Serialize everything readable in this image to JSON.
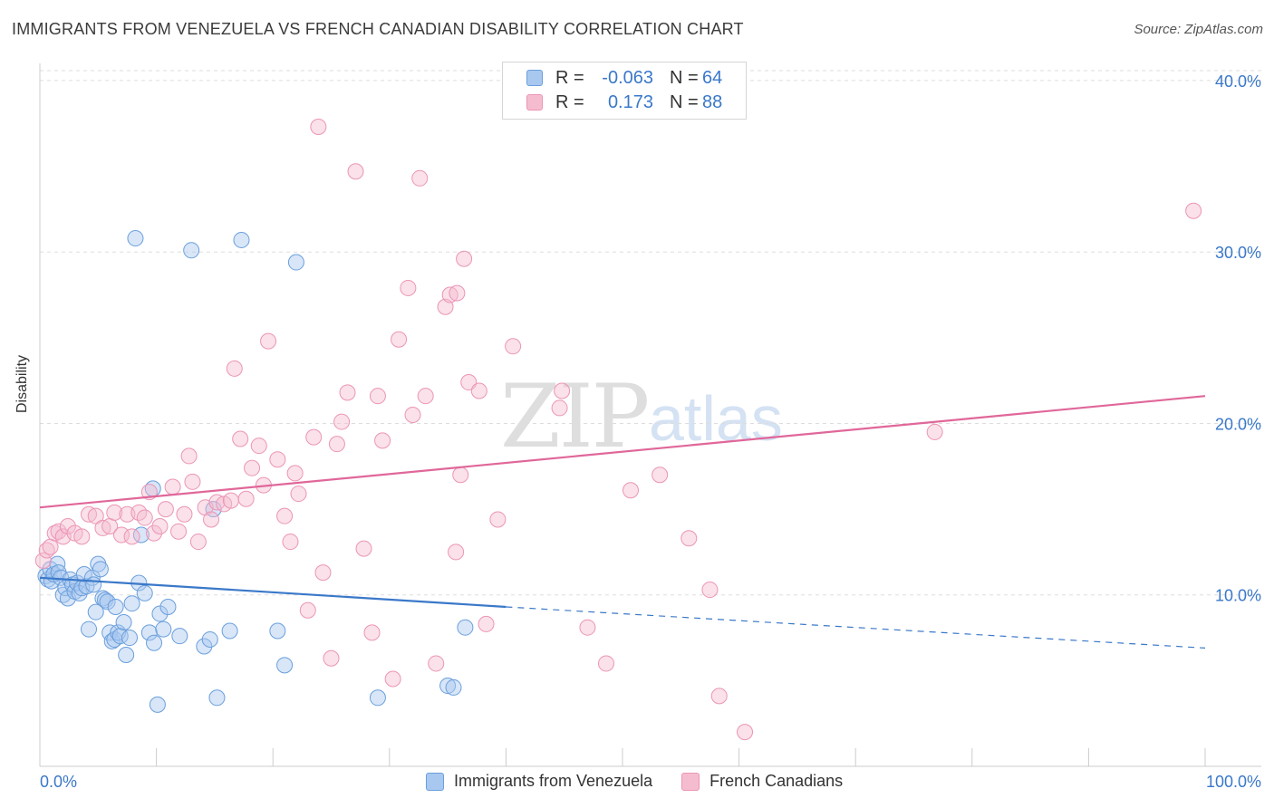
{
  "title": "IMMIGRANTS FROM VENEZUELA VS FRENCH CANADIAN DISABILITY CORRELATION CHART",
  "source": "Source: ZipAtlas.com",
  "watermark": {
    "zip": "ZIP",
    "atlas": "atlas"
  },
  "legend_top": [
    {
      "r_label": "R =",
      "r_value": "-0.063",
      "n_label": "N =",
      "n_value": "64"
    },
    {
      "r_label": "R =",
      "r_value": "0.173",
      "n_label": "N =",
      "n_value": "88"
    }
  ],
  "legend_bottom": [
    "Immigrants from Venezuela",
    "French Canadians"
  ],
  "colors": {
    "blue": "#3a78c9",
    "blue_fill": "#a9c8ef",
    "blue_stroke": "#6a9fdc",
    "pink": "#e0679a",
    "pink_fill": "#f5bcd0",
    "pink_stroke": "#ec95b6",
    "grid": "#dddddd",
    "tick_label": "#3a78c9"
  },
  "chart_data": {
    "type": "scatter",
    "title": "IMMIGRANTS FROM VENEZUELA VS FRENCH CANADIAN DISABILITY CORRELATION CHART",
    "xlabel": "",
    "ylabel": "Disability",
    "xlim": [
      0,
      100
    ],
    "ylim": [
      0,
      41
    ],
    "x_tick_labels": [
      "0.0%",
      "100.0%"
    ],
    "y_ticks": [
      10,
      20,
      30,
      40
    ],
    "y_tick_labels": [
      "10.0%",
      "20.0%",
      "30.0%",
      "40.0%"
    ],
    "legend_position": "top-center",
    "series": [
      {
        "name": "Immigrants from Venezuela",
        "r": -0.063,
        "n": 64,
        "trend": {
          "x0": 0,
          "y0": 11.0,
          "x1": 40,
          "y1": 9.3,
          "dash_to_x": 100,
          "dash_to_y": 6.9
        },
        "points": [
          [
            0.5,
            11.1
          ],
          [
            0.7,
            10.9
          ],
          [
            0.9,
            11.5
          ],
          [
            1.0,
            10.8
          ],
          [
            1.2,
            11.2
          ],
          [
            1.5,
            11.8
          ],
          [
            1.6,
            11.3
          ],
          [
            1.8,
            11.0
          ],
          [
            2.0,
            10.0
          ],
          [
            2.2,
            10.4
          ],
          [
            2.4,
            9.8
          ],
          [
            2.6,
            10.9
          ],
          [
            2.8,
            10.6
          ],
          [
            3.0,
            10.2
          ],
          [
            3.2,
            10.7
          ],
          [
            3.4,
            10.1
          ],
          [
            3.6,
            10.4
          ],
          [
            3.8,
            11.2
          ],
          [
            4.0,
            10.5
          ],
          [
            4.2,
            8.0
          ],
          [
            4.5,
            11.0
          ],
          [
            4.6,
            10.6
          ],
          [
            4.8,
            9.0
          ],
          [
            5.0,
            11.8
          ],
          [
            5.2,
            11.5
          ],
          [
            5.4,
            9.8
          ],
          [
            5.6,
            9.7
          ],
          [
            5.8,
            9.6
          ],
          [
            6.0,
            7.8
          ],
          [
            6.2,
            7.3
          ],
          [
            6.4,
            7.4
          ],
          [
            6.5,
            9.3
          ],
          [
            6.7,
            7.8
          ],
          [
            6.9,
            7.6
          ],
          [
            7.2,
            8.4
          ],
          [
            7.4,
            6.5
          ],
          [
            7.7,
            7.5
          ],
          [
            7.9,
            9.5
          ],
          [
            8.2,
            30.8
          ],
          [
            8.5,
            10.7
          ],
          [
            8.7,
            13.5
          ],
          [
            9.0,
            10.1
          ],
          [
            9.4,
            7.8
          ],
          [
            9.8,
            7.2
          ],
          [
            10.1,
            3.6
          ],
          [
            10.3,
            8.9
          ],
          [
            10.6,
            8.0
          ],
          [
            11.0,
            9.3
          ],
          [
            12.0,
            7.6
          ],
          [
            13.0,
            30.1
          ],
          [
            14.1,
            7.0
          ],
          [
            14.6,
            7.4
          ],
          [
            14.9,
            15.0
          ],
          [
            15.2,
            4.0
          ],
          [
            16.3,
            7.9
          ],
          [
            17.3,
            30.7
          ],
          [
            20.4,
            7.9
          ],
          [
            21.0,
            5.9
          ],
          [
            22.0,
            29.4
          ],
          [
            29.0,
            4.0
          ],
          [
            35.0,
            4.7
          ],
          [
            35.5,
            4.6
          ],
          [
            36.5,
            8.1
          ],
          [
            9.7,
            16.2
          ]
        ]
      },
      {
        "name": "French Canadians",
        "r": 0.173,
        "n": 88,
        "trend": {
          "x0": 0,
          "y0": 15.1,
          "x1": 100,
          "y1": 21.6
        },
        "points": [
          [
            0.3,
            12.0
          ],
          [
            0.6,
            12.6
          ],
          [
            0.9,
            12.8
          ],
          [
            1.3,
            13.6
          ],
          [
            1.6,
            13.7
          ],
          [
            2.0,
            13.4
          ],
          [
            2.4,
            14.0
          ],
          [
            3.0,
            13.6
          ],
          [
            3.6,
            13.4
          ],
          [
            4.2,
            14.7
          ],
          [
            4.8,
            14.6
          ],
          [
            5.4,
            13.9
          ],
          [
            6.0,
            14.0
          ],
          [
            6.4,
            14.8
          ],
          [
            7.0,
            13.5
          ],
          [
            7.5,
            14.7
          ],
          [
            7.9,
            13.4
          ],
          [
            8.5,
            14.8
          ],
          [
            9.0,
            14.5
          ],
          [
            9.4,
            16.0
          ],
          [
            9.8,
            13.6
          ],
          [
            10.3,
            14.0
          ],
          [
            10.8,
            15.0
          ],
          [
            11.4,
            16.3
          ],
          [
            11.9,
            13.7
          ],
          [
            12.4,
            14.7
          ],
          [
            12.8,
            18.1
          ],
          [
            13.1,
            16.6
          ],
          [
            13.6,
            13.1
          ],
          [
            14.2,
            15.1
          ],
          [
            14.7,
            14.4
          ],
          [
            15.2,
            15.4
          ],
          [
            15.8,
            15.3
          ],
          [
            16.4,
            15.5
          ],
          [
            16.7,
            23.2
          ],
          [
            17.2,
            19.1
          ],
          [
            17.7,
            15.6
          ],
          [
            18.2,
            17.4
          ],
          [
            18.8,
            18.7
          ],
          [
            19.2,
            16.4
          ],
          [
            19.6,
            24.8
          ],
          [
            20.4,
            17.9
          ],
          [
            21.0,
            14.6
          ],
          [
            21.5,
            13.1
          ],
          [
            21.9,
            17.1
          ],
          [
            22.2,
            15.9
          ],
          [
            23.0,
            9.1
          ],
          [
            23.5,
            19.2
          ],
          [
            23.9,
            37.3
          ],
          [
            24.3,
            11.3
          ],
          [
            25.0,
            6.3
          ],
          [
            25.5,
            18.8
          ],
          [
            25.9,
            20.1
          ],
          [
            26.4,
            21.8
          ],
          [
            27.1,
            34.7
          ],
          [
            27.8,
            12.7
          ],
          [
            28.5,
            7.8
          ],
          [
            29.0,
            21.6
          ],
          [
            29.4,
            19.0
          ],
          [
            30.3,
            5.1
          ],
          [
            30.8,
            24.9
          ],
          [
            31.6,
            27.9
          ],
          [
            32.0,
            20.5
          ],
          [
            32.6,
            34.3
          ],
          [
            33.1,
            21.6
          ],
          [
            34.0,
            6.0
          ],
          [
            34.8,
            26.8
          ],
          [
            35.2,
            27.5
          ],
          [
            35.7,
            12.5
          ],
          [
            35.8,
            27.6
          ],
          [
            36.1,
            17.0
          ],
          [
            36.4,
            29.6
          ],
          [
            36.8,
            22.4
          ],
          [
            37.7,
            21.9
          ],
          [
            38.3,
            8.3
          ],
          [
            39.3,
            14.4
          ],
          [
            40.6,
            24.5
          ],
          [
            44.8,
            21.9
          ],
          [
            44.6,
            20.9
          ],
          [
            47.0,
            8.1
          ],
          [
            48.6,
            6.0
          ],
          [
            50.7,
            16.1
          ],
          [
            53.2,
            17.0
          ],
          [
            55.7,
            13.3
          ],
          [
            57.5,
            10.3
          ],
          [
            58.3,
            4.1
          ],
          [
            60.5,
            2.0
          ],
          [
            76.8,
            19.5
          ],
          [
            99.0,
            32.4
          ]
        ]
      }
    ]
  }
}
